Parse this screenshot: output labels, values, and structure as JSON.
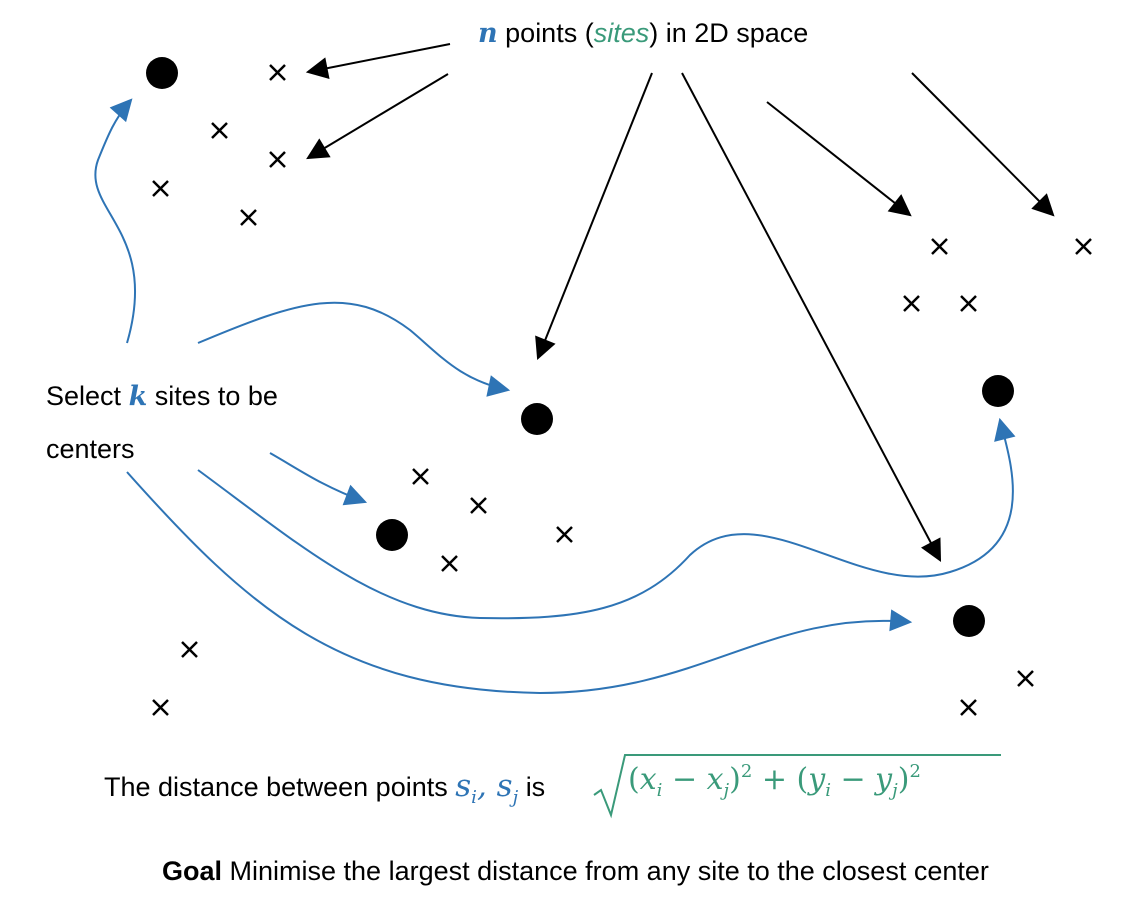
{
  "top_label": {
    "var": "n",
    "text1": "points (",
    "sites_word": "sites",
    "text2": ") in 2D space"
  },
  "select_label": {
    "line1_pre": "Select",
    "var": "k",
    "line1_post": "sites to be",
    "line2": "centers"
  },
  "distance_label": {
    "text1": "The distance between points",
    "s": "s",
    "i": "i",
    "comma": ",",
    "j": "j",
    "text2": "is",
    "formula": {
      "open": "(",
      "x": "x",
      "i": "i",
      "minus": " − ",
      "x2": "x",
      "j": "j",
      "close_sq": ")",
      "two": "2",
      "plus": " + (",
      "y": "y",
      "yi": "i",
      "minus2": " − ",
      "y2": "y",
      "yj": "j",
      "close2": ")",
      "two2": "2"
    }
  },
  "goal_label": {
    "bold": "Goal",
    "text": "Minimise the largest distance from any site to the closest center"
  },
  "colors": {
    "blue": "#2e74b5",
    "green": "#3a9a7a",
    "black": "#000000"
  }
}
